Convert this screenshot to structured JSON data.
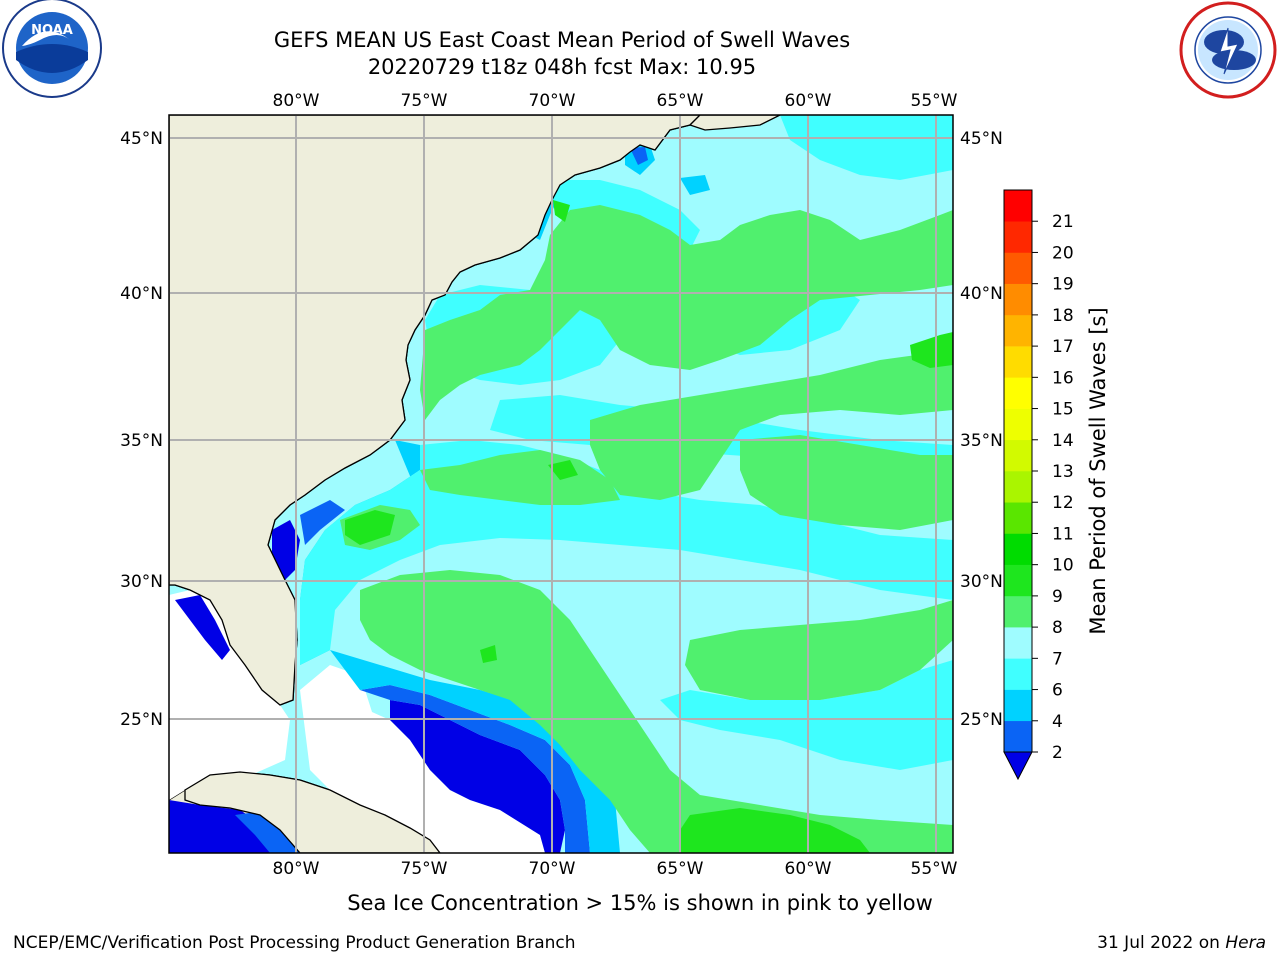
{
  "header": {
    "title_line1": "GEFS MEAN US East Coast Mean Period of Swell Waves",
    "title_line2": "20220729 t18z 048h fcst   Max: 10.95"
  },
  "logos": {
    "noaa_text": "NOAA",
    "noaa_ring_text": "NATIONAL OCEANIC AND ATMOSPHERIC ADMINISTRATION",
    "noaa_ring_bottom": "U.S. DEPARTMENT OF COMMERCE",
    "nws_ring_text": "NATIONAL WEATHER SERVICE"
  },
  "map": {
    "lon_labels": [
      "80°W",
      "75°W",
      "70°W",
      "65°W",
      "60°W",
      "55°W"
    ],
    "lat_labels": [
      "45°N",
      "40°N",
      "35°N",
      "30°N",
      "25°N"
    ],
    "extent": {
      "lon_min": -85,
      "lon_max": -54.3,
      "lat_min": 20.5,
      "lat_max": 45.8
    }
  },
  "colorbar": {
    "label": "Mean Period of Swell Waves [s]",
    "ticks": [
      "2",
      "4",
      "6",
      "7",
      "8",
      "9",
      "10",
      "11",
      "12",
      "13",
      "14",
      "15",
      "16",
      "17",
      "18",
      "19",
      "20",
      "21"
    ],
    "colors": [
      "#0a64f5",
      "#00d2ff",
      "#40ffff",
      "#9ffcff",
      "#50f06e",
      "#1ee61e",
      "#00dc00",
      "#5ae600",
      "#aaf500",
      "#d2fa00",
      "#eeff00",
      "#ffff00",
      "#ffdc00",
      "#ffb400",
      "#ff8c00",
      "#ff5a00",
      "#ff2800",
      "#ff0000"
    ],
    "under_color": "#0000e6"
  },
  "caption": "Sea Ice Concentration > 15% is shown in pink to yellow",
  "footer": {
    "left": "NCEP/EMC/Verification Post Processing Product Generation Branch",
    "right_date": "31 Jul 2022 on ",
    "right_host": "Hera"
  }
}
